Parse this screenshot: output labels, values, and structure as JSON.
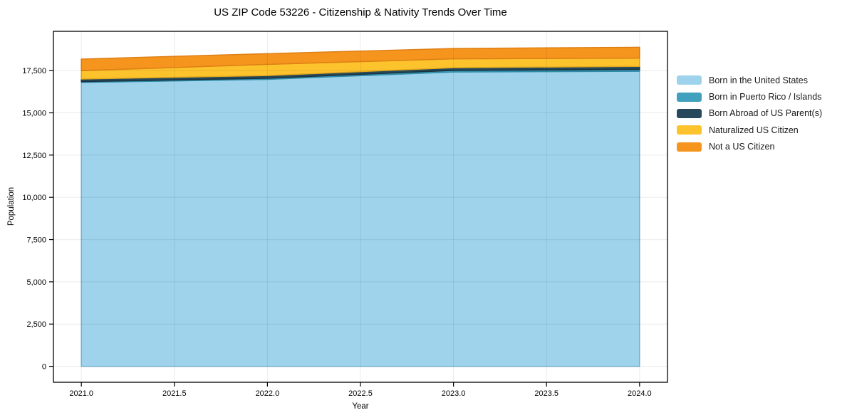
{
  "title": "US ZIP Code 53226 - Citizenship & Nativity Trends Over Time",
  "axes": {
    "xlabel": "Year",
    "ylabel": "Population"
  },
  "chart_data": {
    "type": "area",
    "stacked": true,
    "title": "US ZIP Code 53226 - Citizenship & Nativity Trends Over Time",
    "xlabel": "Year",
    "ylabel": "Population",
    "x": [
      2021,
      2022,
      2023,
      2024
    ],
    "series": [
      {
        "name": "Born in the United States",
        "color": "#9FD3EB",
        "edge": "#7CB8DA",
        "values": [
          16800,
          16980,
          17420,
          17460
        ]
      },
      {
        "name": "Born in Puerto Rico / Islands",
        "color": "#41A0BE",
        "edge": "#2D8BA8",
        "values": [
          50,
          70,
          90,
          110
        ]
      },
      {
        "name": "Born Abroad of US Parent(s)",
        "color": "#27495C",
        "edge": "#1A323E",
        "values": [
          150,
          160,
          160,
          180
        ]
      },
      {
        "name": "Naturalized US Citizen",
        "color": "#FCC32D",
        "edge": "#E3A91E",
        "values": [
          500,
          660,
          530,
          490
        ]
      },
      {
        "name": "Not a US Citizen",
        "color": "#F6951E",
        "edge": "#DE7F14",
        "values": [
          680,
          630,
          610,
          640
        ]
      }
    ],
    "totals": [
      18180,
      18500,
      18810,
      18880
    ],
    "xticks": [
      2021.0,
      2021.5,
      2022.0,
      2022.5,
      2023.0,
      2023.5,
      2024.0
    ],
    "yticks": [
      0,
      2500,
      5000,
      7500,
      10000,
      12500,
      15000,
      17500
    ],
    "xlim": [
      2020.85,
      2024.15
    ],
    "ylim": [
      -944,
      19824
    ],
    "grid": true,
    "legend_position": "center right, outside axes"
  }
}
